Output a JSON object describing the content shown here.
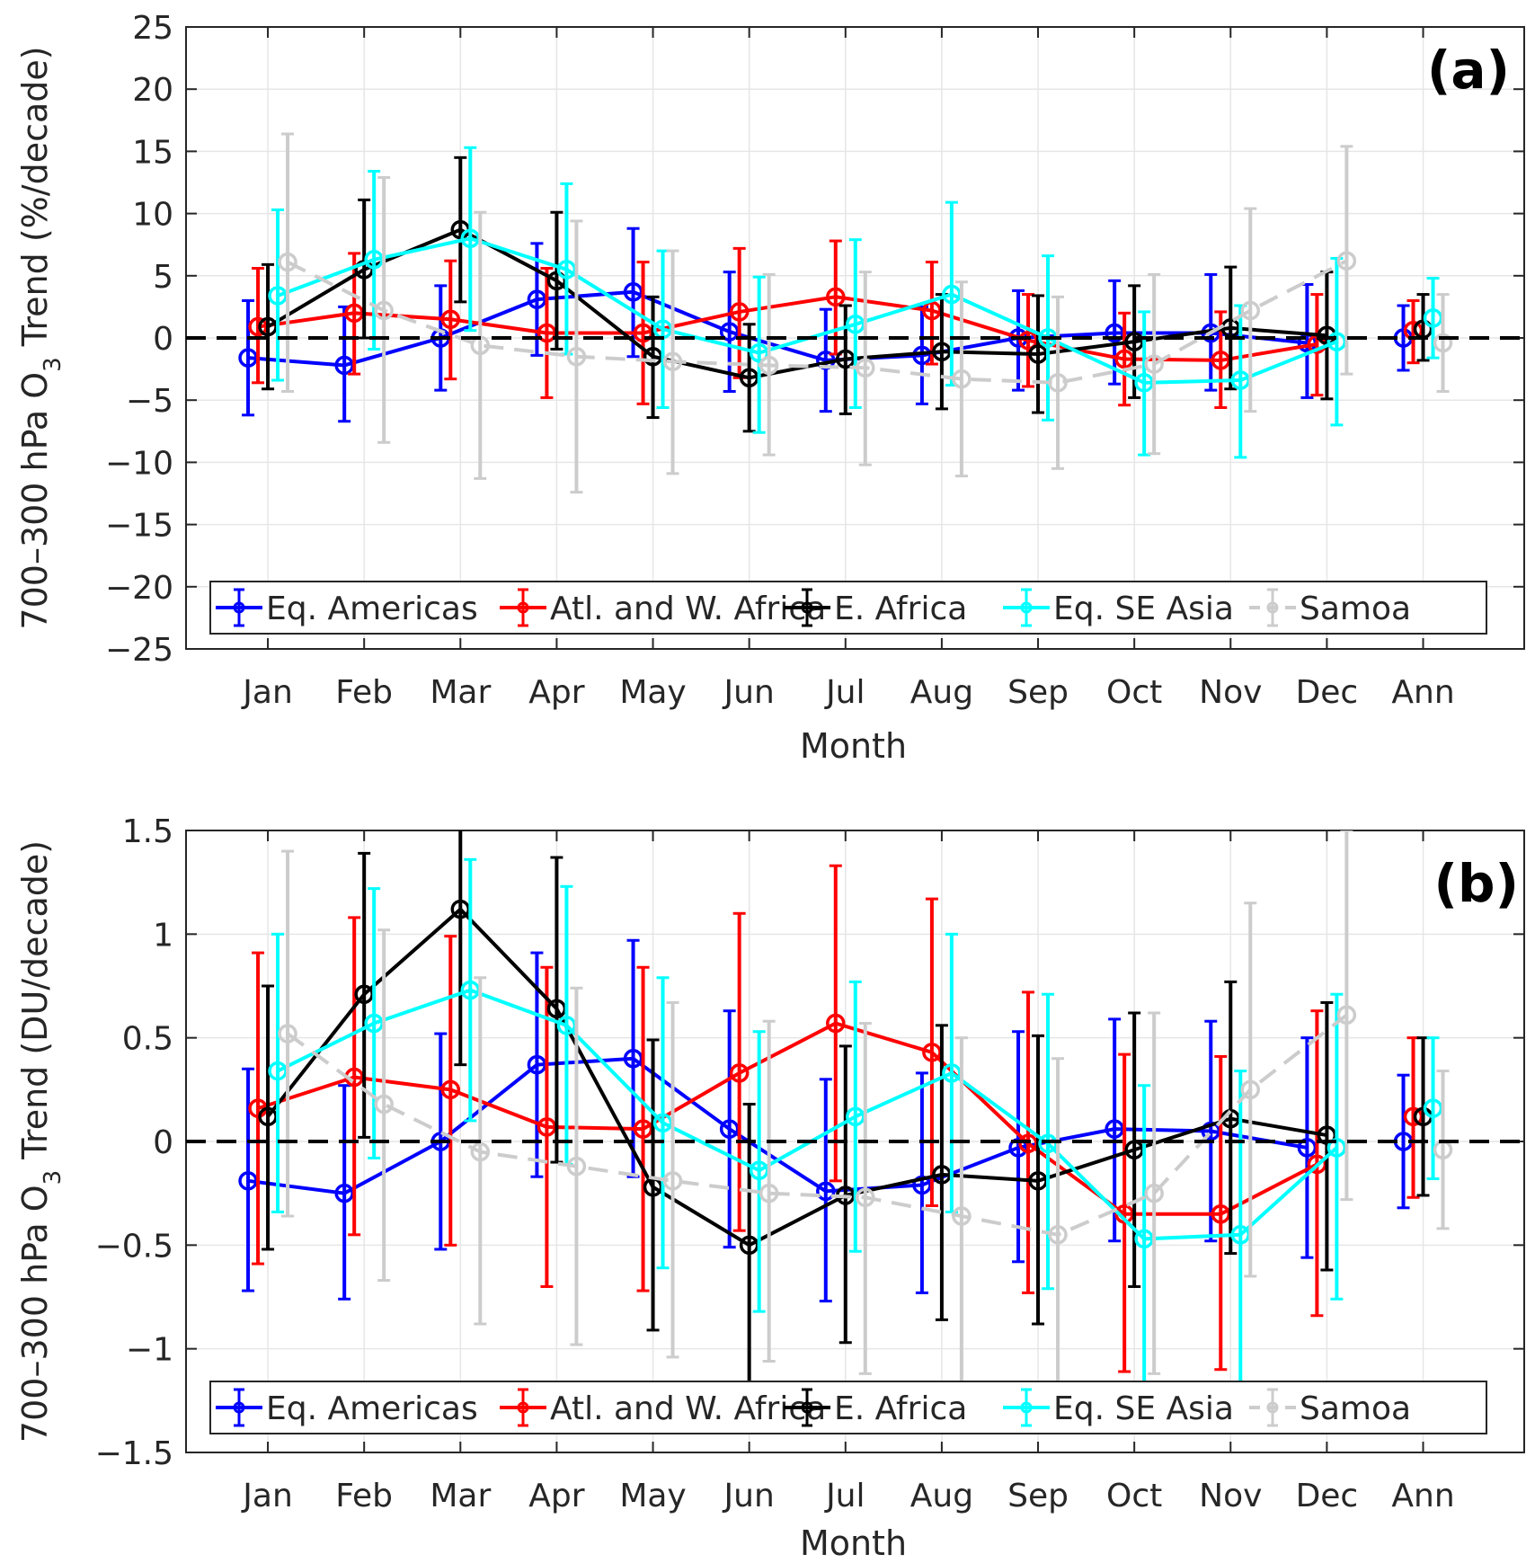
{
  "chart_data": [
    {
      "type": "line",
      "panel_label": "(a)",
      "ylabel": "700–300 hPa O3 Trend (%/decade)",
      "ylabel_parts": [
        "700–300 hPa O",
        "3",
        " Trend (%/decade)"
      ],
      "xlabel": "Month",
      "categories": [
        "Jan",
        "Feb",
        "Mar",
        "Apr",
        "May",
        "Jun",
        "Jul",
        "Aug",
        "Sep",
        "Oct",
        "Nov",
        "Dec",
        "Ann"
      ],
      "ylim": [
        -25,
        25
      ],
      "yticks": [
        -25,
        -20,
        -15,
        -10,
        -5,
        0,
        5,
        10,
        15,
        20,
        25
      ],
      "ytick_labels": [
        "−25",
        "−20",
        "−15",
        "−10",
        "−5",
        "0",
        "5",
        "10",
        "15",
        "20",
        "25"
      ],
      "grid": true,
      "zero_line": "dashed",
      "legend_position": "bottom",
      "series": [
        {
          "name": "Eq. Americas",
          "color": "#0000ff",
          "dashed": false,
          "values": [
            -1.6,
            -2.2,
            0.0,
            3.1,
            3.7,
            0.5,
            -1.8,
            -1.4,
            0.0,
            0.4,
            0.4,
            -0.4,
            0.0
          ],
          "lower": [
            -6.2,
            -6.7,
            -4.2,
            -1.4,
            -1.5,
            -4.3,
            -5.9,
            -5.3,
            -4.2,
            -3.7,
            -4.2,
            -4.8,
            -2.6
          ],
          "upper": [
            3.0,
            2.5,
            4.2,
            7.6,
            8.8,
            5.3,
            2.3,
            2.5,
            3.8,
            4.6,
            5.1,
            4.3,
            2.6
          ]
        },
        {
          "name": "Atl. and W. Africa",
          "color": "#ff0000",
          "dashed": false,
          "values": [
            0.9,
            2.0,
            1.5,
            0.4,
            0.4,
            2.1,
            3.3,
            2.2,
            -0.2,
            -1.7,
            -1.8,
            -0.5,
            0.6
          ],
          "lower": [
            -3.6,
            -2.9,
            -3.3,
            -4.8,
            -5.3,
            -3.2,
            -1.3,
            -2.1,
            -3.9,
            -5.4,
            -5.6,
            -4.6,
            -2.0
          ],
          "upper": [
            5.6,
            6.8,
            6.2,
            5.6,
            6.1,
            7.2,
            7.8,
            6.1,
            3.5,
            2.0,
            2.1,
            3.5,
            3.0
          ]
        },
        {
          "name": "E. Africa",
          "color": "#000000",
          "dashed": false,
          "values": [
            0.9,
            5.5,
            8.7,
            4.6,
            -1.5,
            -3.2,
            -1.7,
            -1.1,
            -1.3,
            -0.3,
            0.8,
            0.2,
            0.7
          ],
          "lower": [
            -4.1,
            0.0,
            2.9,
            -0.9,
            -6.4,
            -7.5,
            -6.1,
            -5.7,
            -6.0,
            -4.8,
            -4.1,
            -4.9,
            -1.8
          ],
          "upper": [
            5.9,
            11.1,
            14.5,
            10.1,
            3.3,
            1.1,
            2.6,
            3.5,
            3.4,
            4.2,
            5.7,
            5.3,
            3.5
          ]
        },
        {
          "name": "Eq. SE Asia",
          "color": "#00ffff",
          "dashed": false,
          "values": [
            3.4,
            6.3,
            8.0,
            5.5,
            0.7,
            -1.2,
            1.1,
            3.5,
            0.0,
            -3.6,
            -3.4,
            -0.3,
            1.6
          ],
          "lower": [
            -3.4,
            -0.9,
            0.6,
            -1.3,
            -5.6,
            -7.6,
            -5.6,
            -3.8,
            -6.6,
            -9.4,
            -9.6,
            -7.0,
            -1.6
          ],
          "upper": [
            10.3,
            13.4,
            15.3,
            12.4,
            7.0,
            4.9,
            7.9,
            10.9,
            6.6,
            2.1,
            2.6,
            6.4,
            4.8
          ]
        },
        {
          "name": "Samoa",
          "color": "#cccccc",
          "dashed": true,
          "values": [
            6.1,
            2.2,
            -0.6,
            -1.5,
            -1.9,
            -2.2,
            -2.4,
            -3.3,
            -3.6,
            -2.1,
            2.2,
            6.2,
            -0.4
          ],
          "lower": [
            -4.3,
            -8.4,
            -11.3,
            -12.4,
            -10.9,
            -9.4,
            -10.2,
            -11.1,
            -10.5,
            -9.3,
            -5.9,
            -2.9,
            -4.3
          ],
          "upper": [
            16.4,
            12.9,
            10.1,
            9.4,
            7.0,
            5.1,
            5.3,
            4.5,
            3.3,
            5.1,
            10.4,
            15.4,
            3.5
          ]
        }
      ]
    },
    {
      "type": "line",
      "panel_label": "(b)",
      "ylabel": "700–300 hPa O3 Trend (DU/decade)",
      "ylabel_parts": [
        "700–300 hPa O",
        "3",
        " Trend (DU/decade)"
      ],
      "xlabel": "Month",
      "categories": [
        "Jan",
        "Feb",
        "Mar",
        "Apr",
        "May",
        "Jun",
        "Jul",
        "Aug",
        "Sep",
        "Oct",
        "Nov",
        "Dec",
        "Ann"
      ],
      "ylim": [
        -1.5,
        1.5
      ],
      "yticks": [
        -1.5,
        -1,
        -0.5,
        0,
        0.5,
        1,
        1.5
      ],
      "ytick_labels": [
        "−1.5",
        "−1",
        "−0.5",
        "0",
        "0.5",
        "1",
        "1.5"
      ],
      "grid": true,
      "zero_line": "dashed",
      "legend_position": "bottom",
      "series": [
        {
          "name": "Eq. Americas",
          "color": "#0000ff",
          "dashed": false,
          "values": [
            -0.19,
            -0.25,
            0.0,
            0.37,
            0.4,
            0.06,
            -0.24,
            -0.21,
            -0.03,
            0.06,
            0.05,
            -0.03,
            0.0
          ],
          "lower": [
            -0.72,
            -0.76,
            -0.52,
            -0.17,
            -0.17,
            -0.51,
            -0.77,
            -0.73,
            -0.58,
            -0.48,
            -0.48,
            -0.56,
            -0.32
          ],
          "upper": [
            0.35,
            0.27,
            0.52,
            0.91,
            0.97,
            0.63,
            0.3,
            0.33,
            0.53,
            0.59,
            0.58,
            0.5,
            0.32
          ]
        },
        {
          "name": "Atl. and W. Africa",
          "color": "#ff0000",
          "dashed": false,
          "values": [
            0.16,
            0.31,
            0.25,
            0.07,
            0.06,
            0.33,
            0.57,
            0.43,
            -0.01,
            -0.35,
            -0.35,
            -0.11,
            0.12
          ],
          "lower": [
            -0.59,
            -0.45,
            -0.5,
            -0.7,
            -0.72,
            -0.43,
            -0.19,
            -0.31,
            -0.73,
            -1.11,
            -1.1,
            -0.84,
            -0.27
          ],
          "upper": [
            0.91,
            1.08,
            0.99,
            0.84,
            0.84,
            1.1,
            1.33,
            1.17,
            0.72,
            0.42,
            0.41,
            0.63,
            0.5
          ]
        },
        {
          "name": "E. Africa",
          "color": "#000000",
          "dashed": false,
          "values": [
            0.12,
            0.71,
            1.12,
            0.64,
            -0.22,
            -0.5,
            -0.26,
            -0.16,
            -0.19,
            -0.04,
            0.11,
            0.03,
            0.12
          ],
          "lower": [
            -0.52,
            0.02,
            0.37,
            -0.1,
            -0.91,
            -1.2,
            -0.97,
            -0.86,
            -0.88,
            -0.7,
            -0.54,
            -0.62,
            -0.26
          ],
          "upper": [
            0.75,
            1.39,
            1.87,
            1.37,
            0.49,
            0.18,
            0.46,
            0.56,
            0.51,
            0.62,
            0.77,
            0.67,
            0.5
          ]
        },
        {
          "name": "Eq. SE Asia",
          "color": "#00ffff",
          "dashed": false,
          "values": [
            0.34,
            0.57,
            0.73,
            0.56,
            0.09,
            -0.14,
            0.12,
            0.33,
            -0.01,
            -0.47,
            -0.45,
            -0.03,
            0.16
          ],
          "lower": [
            -0.34,
            -0.08,
            0.1,
            -0.11,
            -0.61,
            -0.82,
            -0.53,
            -0.34,
            -0.71,
            -1.2,
            -1.2,
            -0.76,
            -0.18
          ],
          "upper": [
            1.0,
            1.22,
            1.36,
            1.23,
            0.79,
            0.53,
            0.77,
            1.0,
            0.71,
            0.27,
            0.34,
            0.71,
            0.5
          ]
        },
        {
          "name": "Samoa",
          "color": "#cccccc",
          "dashed": true,
          "values": [
            0.52,
            0.18,
            -0.05,
            -0.12,
            -0.19,
            -0.25,
            -0.27,
            -0.36,
            -0.45,
            -0.25,
            0.25,
            0.61,
            -0.04
          ],
          "lower": [
            -0.36,
            -0.67,
            -0.88,
            -0.98,
            -1.04,
            -1.06,
            -1.12,
            -1.22,
            -1.3,
            -1.12,
            -0.65,
            -0.28,
            -0.42
          ],
          "upper": [
            1.4,
            1.02,
            0.79,
            0.74,
            0.67,
            0.58,
            0.57,
            0.5,
            0.4,
            0.62,
            1.15,
            1.5,
            0.34
          ]
        }
      ]
    }
  ]
}
